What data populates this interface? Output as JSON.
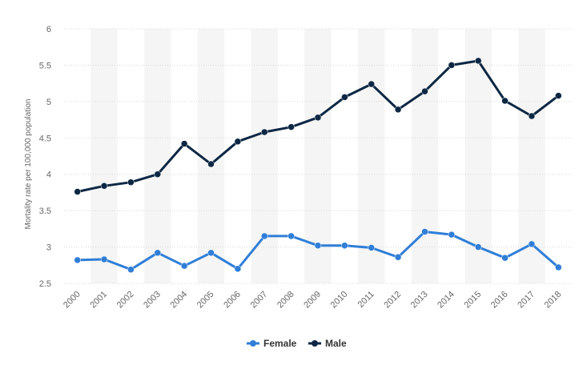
{
  "chart_data": {
    "type": "line",
    "title": "",
    "xlabel": "",
    "ylabel": "Mortality rate per 100,000 population",
    "ylim": [
      2.5,
      6
    ],
    "yticks": [
      "2.5",
      "3",
      "3.5",
      "4",
      "4.5",
      "5",
      "5.5",
      "6"
    ],
    "categories": [
      "2000",
      "2001",
      "2002",
      "2003",
      "2004",
      "2005",
      "2006",
      "2007",
      "2008",
      "2009",
      "2010",
      "2011",
      "2012",
      "2013",
      "2014",
      "2015",
      "2016",
      "2017",
      "2018"
    ],
    "series": [
      {
        "name": "Female",
        "color": "#2f7ed8",
        "values": [
          2.82,
          2.83,
          2.69,
          2.92,
          2.74,
          2.92,
          2.7,
          3.15,
          3.15,
          3.02,
          3.02,
          2.99,
          2.86,
          3.21,
          3.17,
          3.0,
          2.85,
          3.04,
          2.72
        ]
      },
      {
        "name": "Male",
        "color": "#0d2744",
        "values": [
          3.76,
          3.84,
          3.89,
          4.0,
          4.42,
          4.14,
          4.45,
          4.58,
          4.65,
          4.78,
          5.06,
          5.24,
          4.89,
          5.14,
          5.5,
          5.56,
          5.01,
          4.8,
          5.08
        ]
      }
    ],
    "grid": true,
    "legend": "bottom-center"
  }
}
